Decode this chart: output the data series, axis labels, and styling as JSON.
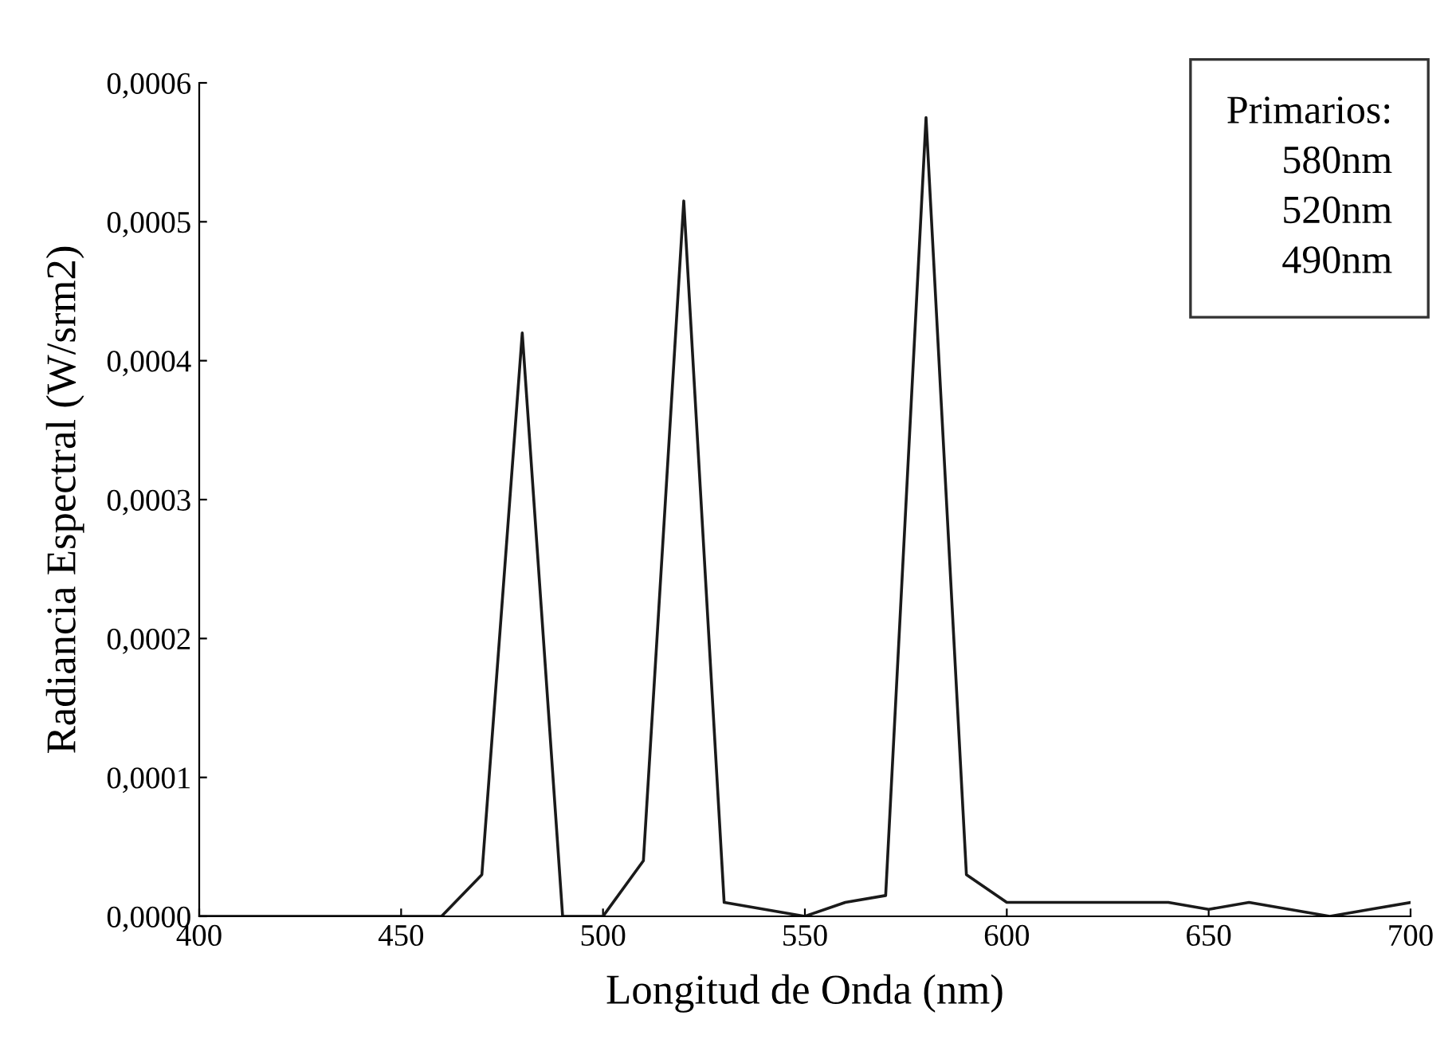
{
  "chart_data": {
    "type": "line",
    "xlabel": "Longitud de Onda (nm)",
    "ylabel": "Radiancia Espectral (W/srm2)",
    "x": [
      400,
      410,
      420,
      430,
      440,
      450,
      460,
      470,
      480,
      490,
      500,
      510,
      520,
      530,
      540,
      550,
      560,
      570,
      580,
      590,
      600,
      610,
      620,
      630,
      640,
      650,
      660,
      670,
      680,
      690,
      700
    ],
    "series": [
      {
        "color": "#1a1a1a",
        "values": [
          0,
          0,
          0,
          0,
          0,
          0,
          0,
          3e-05,
          0.00042,
          0,
          0,
          4e-05,
          0.000515,
          1e-05,
          5e-06,
          0,
          1e-05,
          1.5e-05,
          0.000575,
          3e-05,
          1e-05,
          1e-05,
          1e-05,
          1e-05,
          1e-05,
          5e-06,
          1e-05,
          5e-06,
          0,
          5e-06,
          1e-05
        ]
      }
    ],
    "xlim": [
      400,
      700
    ],
    "xticks": [
      400,
      450,
      500,
      550,
      600,
      650,
      700
    ],
    "ylim": [
      0,
      0.0006
    ],
    "yticks": [
      {
        "value": 0,
        "label": "0,0000"
      },
      {
        "value": 0.0001,
        "label": "0,0001"
      },
      {
        "value": 0.0002,
        "label": "0,0002"
      },
      {
        "value": 0.0003,
        "label": "0,0003"
      },
      {
        "value": 0.0004,
        "label": "0,0004"
      },
      {
        "value": 0.0005,
        "label": "0,0005"
      },
      {
        "value": 0.0006,
        "label": "0,0006"
      }
    ],
    "grid": false,
    "marker": "none",
    "line_style": "solid",
    "annotations": [
      "Primarios:\n580nm\n520nm\n490nm"
    ]
  }
}
